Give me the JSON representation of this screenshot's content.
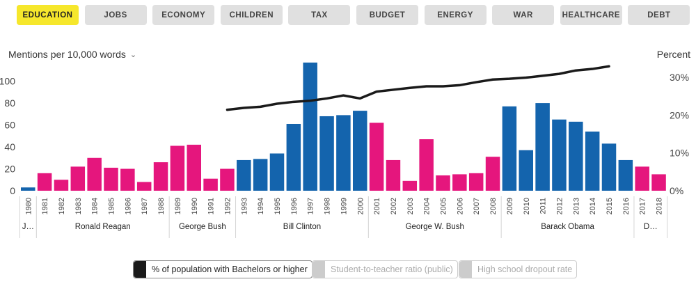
{
  "tabs": [
    {
      "label": "EDUCATION",
      "active": true
    },
    {
      "label": "JOBS",
      "active": false
    },
    {
      "label": "ECONOMY",
      "active": false
    },
    {
      "label": "CHILDREN",
      "active": false
    },
    {
      "label": "TAX",
      "active": false
    },
    {
      "label": "BUDGET",
      "active": false
    },
    {
      "label": "ENERGY",
      "active": false
    },
    {
      "label": "WAR",
      "active": false
    },
    {
      "label": "HEALTHCARE",
      "active": false
    },
    {
      "label": "DEBT",
      "active": false
    }
  ],
  "colors": {
    "democrat": "#1464ad",
    "republican": "#e5167d",
    "line": "#1a1a1a",
    "active_tab": "#f6e72c",
    "inactive_tab": "#e0e0e0"
  },
  "legend": [
    {
      "label": "% of population with Bachelors or higher",
      "active": true,
      "color": "#1a1a1a"
    },
    {
      "label": "Student-to-teacher ratio (public)",
      "active": false,
      "color": "#cccccc"
    },
    {
      "label": "High school dropout rate",
      "active": false,
      "color": "#cccccc"
    }
  ],
  "chart_data": {
    "type": "bar",
    "ylabel": "Mentions per 10,000 words",
    "ylabel_right": "Percent",
    "ylim": [
      0,
      115
    ],
    "yticks": [
      0,
      20,
      40,
      60,
      80,
      100
    ],
    "ylim_right": [
      0,
      0.32
    ],
    "yticks_right": [
      "0%",
      "10%",
      "20%",
      "30%"
    ],
    "categories": [
      "1980",
      "1981",
      "1982",
      "1983",
      "1984",
      "1985",
      "1986",
      "1987",
      "1988",
      "1989",
      "1990",
      "1991",
      "1992",
      "1993",
      "1994",
      "1995",
      "1996",
      "1997",
      "1998",
      "1999",
      "2000",
      "2001",
      "2002",
      "2003",
      "2004",
      "2005",
      "2006",
      "2007",
      "2008",
      "2009",
      "2010",
      "2011",
      "2012",
      "2013",
      "2014",
      "2015",
      "2016",
      "2017",
      "2018"
    ],
    "values": [
      3,
      16,
      10,
      22,
      30,
      21,
      20,
      8,
      26,
      41,
      42,
      11,
      20,
      28,
      29,
      34,
      61,
      117,
      68,
      69,
      73,
      62,
      28,
      9,
      47,
      14,
      15,
      16,
      31,
      77,
      37,
      80,
      65,
      63,
      54,
      43,
      28,
      22,
      15
    ],
    "party": [
      "D",
      "R",
      "R",
      "R",
      "R",
      "R",
      "R",
      "R",
      "R",
      "R",
      "R",
      "R",
      "R",
      "D",
      "D",
      "D",
      "D",
      "D",
      "D",
      "D",
      "D",
      "R",
      "R",
      "R",
      "R",
      "R",
      "R",
      "R",
      "R",
      "D",
      "D",
      "D",
      "D",
      "D",
      "D",
      "D",
      "D",
      "R",
      "R"
    ],
    "presidents": [
      {
        "name": "J…",
        "start": 0,
        "end": 0
      },
      {
        "name": "Ronald Reagan",
        "start": 1,
        "end": 8
      },
      {
        "name": "George Bush",
        "start": 9,
        "end": 12
      },
      {
        "name": "Bill Clinton",
        "start": 13,
        "end": 20
      },
      {
        "name": "George W. Bush",
        "start": 21,
        "end": 28
      },
      {
        "name": "Barack Obama",
        "start": 29,
        "end": 36
      },
      {
        "name": "D…",
        "start": 37,
        "end": 38
      }
    ],
    "line_series": {
      "name": "% of population with Bachelors or higher",
      "x": [
        "1992",
        "1993",
        "1994",
        "1995",
        "1996",
        "1997",
        "1998",
        "1999",
        "2000",
        "2001",
        "2002",
        "2003",
        "2004",
        "2005",
        "2006",
        "2007",
        "2008",
        "2009",
        "2010",
        "2011",
        "2012",
        "2013",
        "2014",
        "2015"
      ],
      "values": [
        0.214,
        0.219,
        0.222,
        0.23,
        0.235,
        0.238,
        0.244,
        0.252,
        0.244,
        0.262,
        0.267,
        0.272,
        0.276,
        0.276,
        0.279,
        0.287,
        0.294,
        0.296,
        0.299,
        0.304,
        0.309,
        0.318,
        0.322,
        0.329
      ]
    }
  }
}
